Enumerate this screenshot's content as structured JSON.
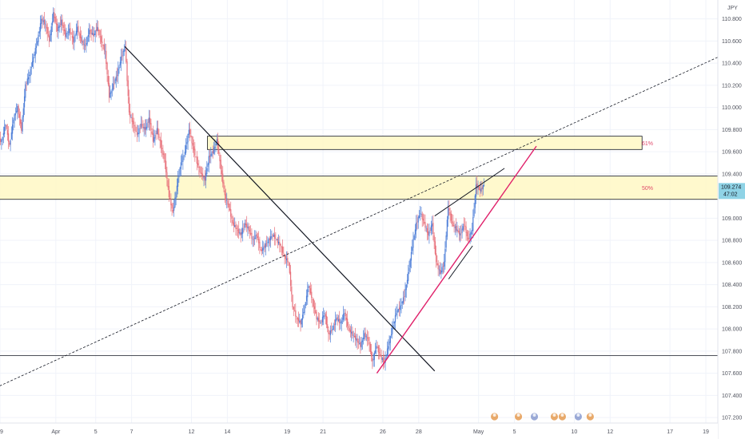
{
  "chart_data": {
    "type": "candlestick",
    "currency_label": "JPY",
    "y_range": [
      107.15,
      110.97
    ],
    "y_ticks": [
      110.8,
      110.6,
      110.4,
      110.2,
      110.0,
      109.8,
      109.6,
      109.4,
      109.2,
      109.0,
      108.8,
      108.6,
      108.4,
      108.2,
      108.0,
      107.8,
      107.6,
      107.4,
      107.2
    ],
    "y_tick_labels": [
      "110.800",
      "110.600",
      "110.400",
      "110.200",
      "110.000",
      "109.800",
      "109.600",
      "109.400",
      "109.200",
      "109.000",
      "108.800",
      "108.600",
      "108.400",
      "108.200",
      "108.000",
      "107.800",
      "107.600",
      "107.400",
      "107.200"
    ],
    "x_range": [
      0,
      180
    ],
    "x_ticks": [
      {
        "x": 0,
        "label": "9"
      },
      {
        "x": 14,
        "label": "Apr"
      },
      {
        "x": 24,
        "label": "5"
      },
      {
        "x": 33,
        "label": "7"
      },
      {
        "x": 48,
        "label": "12"
      },
      {
        "x": 57,
        "label": "14"
      },
      {
        "x": 72,
        "label": "19"
      },
      {
        "x": 81,
        "label": "21"
      },
      {
        "x": 96,
        "label": "26"
      },
      {
        "x": 105,
        "label": "28"
      },
      {
        "x": 120,
        "label": "May"
      },
      {
        "x": 129,
        "label": "5"
      },
      {
        "x": 144,
        "label": "10"
      },
      {
        "x": 153,
        "label": "12"
      },
      {
        "x": 168,
        "label": "17"
      },
      {
        "x": 177,
        "label": "19"
      }
    ],
    "price_series": [
      {
        "x": 0,
        "c": 109.7
      },
      {
        "x": 1,
        "c": 109.85
      },
      {
        "x": 2,
        "c": 109.65
      },
      {
        "x": 3,
        "c": 109.9
      },
      {
        "x": 4,
        "c": 110.0
      },
      {
        "x": 5,
        "c": 109.8
      },
      {
        "x": 6,
        "c": 110.2
      },
      {
        "x": 7,
        "c": 110.3
      },
      {
        "x": 8,
        "c": 110.45
      },
      {
        "x": 9,
        "c": 110.6
      },
      {
        "x": 10,
        "c": 110.8
      },
      {
        "x": 11,
        "c": 110.75
      },
      {
        "x": 12,
        "c": 110.6
      },
      {
        "x": 13,
        "c": 110.85
      },
      {
        "x": 14,
        "c": 110.7
      },
      {
        "x": 15,
        "c": 110.78
      },
      {
        "x": 16,
        "c": 110.65
      },
      {
        "x": 17,
        "c": 110.7
      },
      {
        "x": 18,
        "c": 110.6
      },
      {
        "x": 19,
        "c": 110.72
      },
      {
        "x": 20,
        "c": 110.6
      },
      {
        "x": 21,
        "c": 110.55
      },
      {
        "x": 22,
        "c": 110.7
      },
      {
        "x": 23,
        "c": 110.65
      },
      {
        "x": 24,
        "c": 110.72
      },
      {
        "x": 25,
        "c": 110.6
      },
      {
        "x": 26,
        "c": 110.5
      },
      {
        "x": 27,
        "c": 110.1
      },
      {
        "x": 28,
        "c": 110.2
      },
      {
        "x": 29,
        "c": 110.3
      },
      {
        "x": 30,
        "c": 110.45
      },
      {
        "x": 31,
        "c": 110.55
      },
      {
        "x": 32,
        "c": 109.95
      },
      {
        "x": 33,
        "c": 109.85
      },
      {
        "x": 34,
        "c": 109.75
      },
      {
        "x": 35,
        "c": 109.85
      },
      {
        "x": 36,
        "c": 109.8
      },
      {
        "x": 37,
        "c": 109.9
      },
      {
        "x": 38,
        "c": 109.7
      },
      {
        "x": 39,
        "c": 109.8
      },
      {
        "x": 40,
        "c": 109.65
      },
      {
        "x": 41,
        "c": 109.5
      },
      {
        "x": 42,
        "c": 109.2
      },
      {
        "x": 43,
        "c": 109.05
      },
      {
        "x": 44,
        "c": 109.3
      },
      {
        "x": 45,
        "c": 109.5
      },
      {
        "x": 46,
        "c": 109.6
      },
      {
        "x": 47,
        "c": 109.8
      },
      {
        "x": 48,
        "c": 109.65
      },
      {
        "x": 49,
        "c": 109.5
      },
      {
        "x": 50,
        "c": 109.4
      },
      {
        "x": 51,
        "c": 109.35
      },
      {
        "x": 52,
        "c": 109.55
      },
      {
        "x": 53,
        "c": 109.6
      },
      {
        "x": 54,
        "c": 109.7
      },
      {
        "x": 55,
        "c": 109.45
      },
      {
        "x": 56,
        "c": 109.2
      },
      {
        "x": 57,
        "c": 109.1
      },
      {
        "x": 58,
        "c": 108.95
      },
      {
        "x": 59,
        "c": 108.9
      },
      {
        "x": 60,
        "c": 108.85
      },
      {
        "x": 61,
        "c": 108.95
      },
      {
        "x": 62,
        "c": 108.9
      },
      {
        "x": 63,
        "c": 108.8
      },
      {
        "x": 64,
        "c": 108.85
      },
      {
        "x": 65,
        "c": 108.7
      },
      {
        "x": 66,
        "c": 108.75
      },
      {
        "x": 67,
        "c": 108.8
      },
      {
        "x": 68,
        "c": 108.85
      },
      {
        "x": 69,
        "c": 108.8
      },
      {
        "x": 70,
        "c": 108.75
      },
      {
        "x": 71,
        "c": 108.65
      },
      {
        "x": 72,
        "c": 108.6
      },
      {
        "x": 73,
        "c": 108.2
      },
      {
        "x": 74,
        "c": 108.1
      },
      {
        "x": 75,
        "c": 108.05
      },
      {
        "x": 76,
        "c": 108.2
      },
      {
        "x": 77,
        "c": 108.4
      },
      {
        "x": 78,
        "c": 108.25
      },
      {
        "x": 79,
        "c": 108.1
      },
      {
        "x": 80,
        "c": 108.05
      },
      {
        "x": 81,
        "c": 108.15
      },
      {
        "x": 82,
        "c": 107.95
      },
      {
        "x": 83,
        "c": 108.0
      },
      {
        "x": 84,
        "c": 108.1
      },
      {
        "x": 85,
        "c": 108.05
      },
      {
        "x": 86,
        "c": 108.15
      },
      {
        "x": 87,
        "c": 108.0
      },
      {
        "x": 88,
        "c": 107.95
      },
      {
        "x": 89,
        "c": 107.9
      },
      {
        "x": 90,
        "c": 107.85
      },
      {
        "x": 91,
        "c": 107.95
      },
      {
        "x": 92,
        "c": 107.9
      },
      {
        "x": 93,
        "c": 107.7
      },
      {
        "x": 94,
        "c": 107.85
      },
      {
        "x": 95,
        "c": 107.75
      },
      {
        "x": 96,
        "c": 107.7
      },
      {
        "x": 97,
        "c": 107.85
      },
      {
        "x": 98,
        "c": 108.0
      },
      {
        "x": 99,
        "c": 108.15
      },
      {
        "x": 100,
        "c": 108.2
      },
      {
        "x": 101,
        "c": 108.3
      },
      {
        "x": 102,
        "c": 108.5
      },
      {
        "x": 103,
        "c": 108.75
      },
      {
        "x": 104,
        "c": 108.95
      },
      {
        "x": 105,
        "c": 109.05
      },
      {
        "x": 106,
        "c": 108.95
      },
      {
        "x": 107,
        "c": 108.85
      },
      {
        "x": 108,
        "c": 108.95
      },
      {
        "x": 109,
        "c": 108.6
      },
      {
        "x": 110,
        "c": 108.5
      },
      {
        "x": 111,
        "c": 108.6
      },
      {
        "x": 112,
        "c": 109.1
      },
      {
        "x": 113,
        "c": 108.95
      },
      {
        "x": 114,
        "c": 108.9
      },
      {
        "x": 115,
        "c": 108.85
      },
      {
        "x": 116,
        "c": 108.95
      },
      {
        "x": 117,
        "c": 108.8
      },
      {
        "x": 118,
        "c": 108.9
      },
      {
        "x": 119,
        "c": 109.3
      },
      {
        "x": 120,
        "c": 109.25
      },
      {
        "x": 121,
        "c": 109.3
      }
    ],
    "zones": [
      {
        "name": "61%",
        "y_top": 109.74,
        "y_bottom": 109.62,
        "x_start": 52,
        "x_end": 161
      },
      {
        "name": "50%",
        "y_top": 109.38,
        "y_bottom": 109.17,
        "x_start": -2,
        "x_end": 181
      }
    ],
    "horizontal_lines": [
      107.76
    ],
    "current_price": "109.274",
    "current_time": "47:02"
  }
}
